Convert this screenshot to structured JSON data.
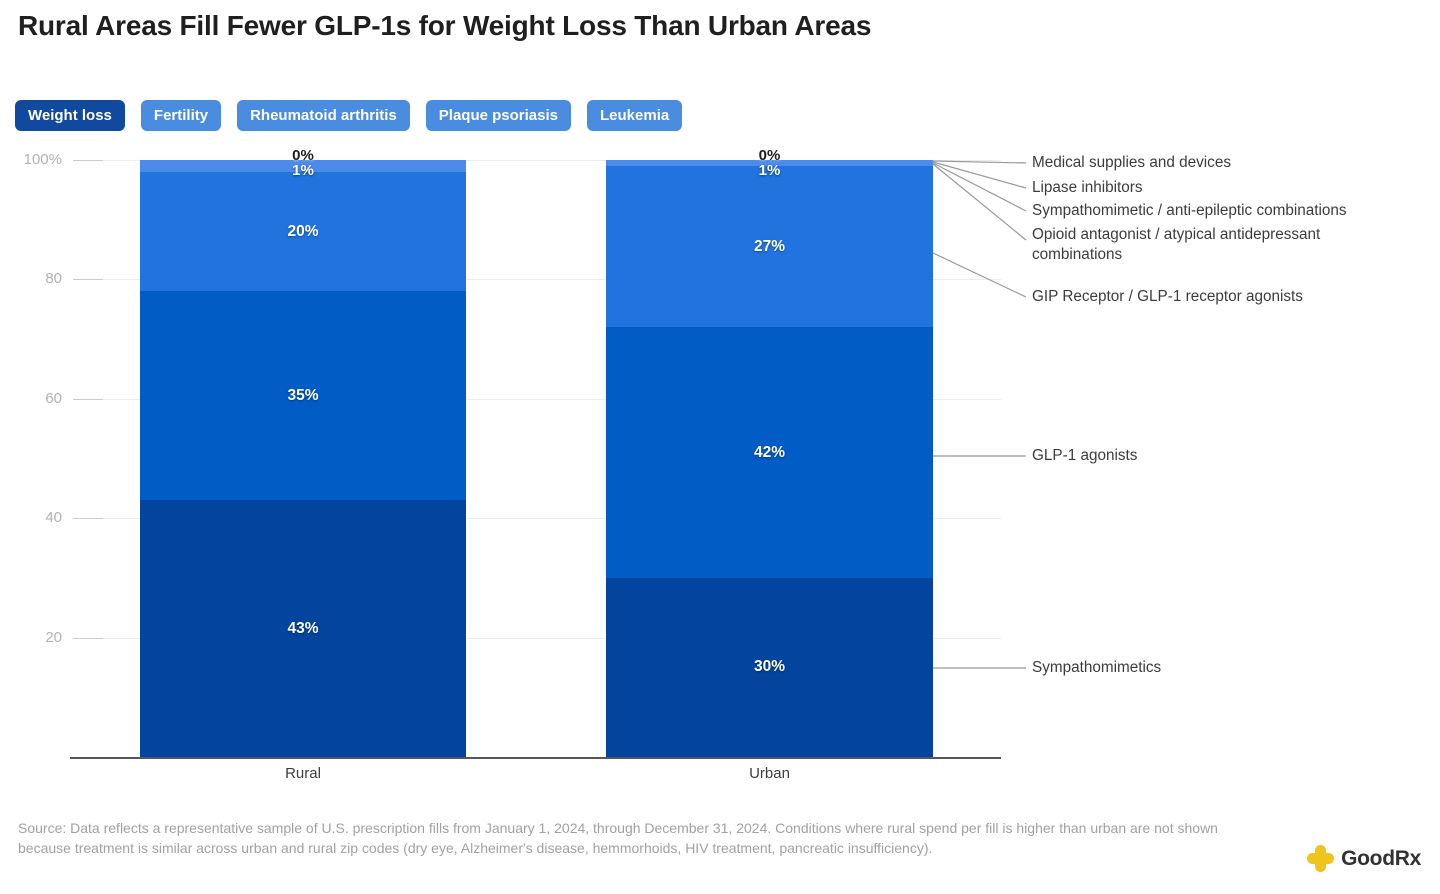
{
  "title": "Rural Areas Fill Fewer GLP-1s for Weight Loss Than Urban Areas",
  "tabs": {
    "items": [
      {
        "label": "Weight loss",
        "selected": true
      },
      {
        "label": "Fertility",
        "selected": false
      },
      {
        "label": "Rheumatoid arthritis",
        "selected": false
      },
      {
        "label": "Plaque psoriasis",
        "selected": false
      },
      {
        "label": "Leukemia",
        "selected": false
      }
    ],
    "selected_color": "#10499E",
    "unselected_color": "#4A8CE0"
  },
  "chart_data": {
    "type": "bar",
    "stacked": true,
    "unit": "%",
    "categories": [
      "Rural",
      "Urban"
    ],
    "series": [
      {
        "name": "Sympathomimetics",
        "values": [
          43,
          30
        ],
        "color": "#03459E"
      },
      {
        "name": "GLP-1 agonists",
        "values": [
          35,
          42
        ],
        "color": "#015CC5"
      },
      {
        "name": "GIP Receptor / GLP-1 receptor agonists",
        "values": [
          20,
          27
        ],
        "color": "#2174DF"
      },
      {
        "name": "Opioid antagonist / atypical antidepressant combinations",
        "values": [
          1,
          1
        ],
        "color": "#4C8BEA"
      },
      {
        "name": "Sympathomimetic / anti-epileptic combinations",
        "values": [
          0,
          0
        ],
        "color": "#5E97ED"
      },
      {
        "name": "Lipase inhibitors",
        "values": [
          0,
          0
        ],
        "color": "#5E97ED"
      },
      {
        "name": "Medical supplies and devices",
        "values": [
          0,
          0
        ],
        "color": "#5E97ED"
      }
    ],
    "zero_label": "0%",
    "yticks": [
      {
        "label": "100%",
        "value": 100
      },
      {
        "label": "80",
        "value": 80
      },
      {
        "label": "60",
        "value": 60
      },
      {
        "label": "40",
        "value": 40
      },
      {
        "label": "20",
        "value": 20
      }
    ],
    "ylim": [
      0,
      100
    ],
    "grid": "horizontal",
    "legend_position": "right-annotations"
  },
  "source": "Source: Data reflects a representative sample of U.S. prescription fills from January 1, 2024, through December 31, 2024. Conditions where rural spend per fill is higher than urban are not shown because treatment is similar across urban and rural zip codes (dry eye, Alzheimer's disease, hemmorhoids, HIV treatment, pancreatic insufficiency).",
  "logo": {
    "brand": "GoodRx",
    "accent": "#EFC41C"
  }
}
